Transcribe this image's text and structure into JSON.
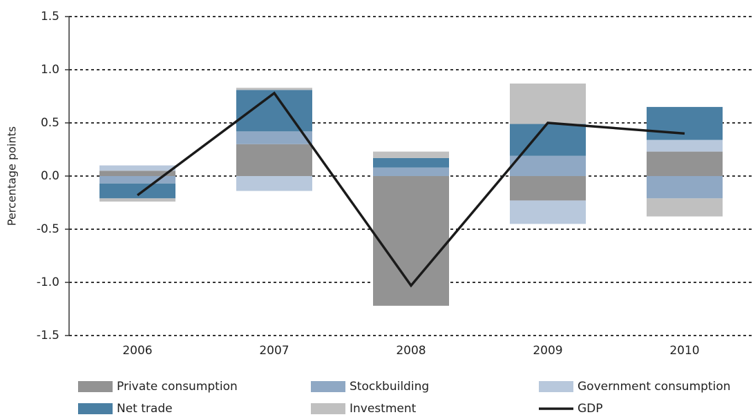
{
  "chart_data": {
    "type": "bar",
    "stacked": true,
    "y_label": "Percentage points",
    "categories": [
      "2006",
      "2007",
      "2008",
      "2009",
      "2010"
    ],
    "series": [
      {
        "name": "Private consumption",
        "color": "#939393",
        "values": [
          0.05,
          0.3,
          -1.22,
          -0.23,
          0.23
        ]
      },
      {
        "name": "Stockbuilding",
        "color": "#8fa8c4",
        "values": [
          -0.07,
          0.12,
          0.08,
          0.19,
          -0.21
        ]
      },
      {
        "name": "Government consumption",
        "color": "#b8c8dc",
        "values": [
          0.05,
          -0.14,
          0,
          -0.22,
          0.11
        ]
      },
      {
        "name": "Net trade",
        "color": "#4a7fa3",
        "values": [
          -0.14,
          0.39,
          0.09,
          0.3,
          0.31
        ]
      },
      {
        "name": "Investment",
        "color": "#c0c0c0",
        "values": [
          -0.03,
          0.02,
          0.06,
          0.38,
          -0.17
        ]
      },
      {
        "name": "GDP",
        "type": "line",
        "color": "#1a1a1a",
        "values": [
          -0.18,
          0.78,
          -1.03,
          0.5,
          0.4
        ]
      }
    ],
    "ylim": [
      -1.5,
      1.5
    ],
    "yticks": [
      -1.5,
      {
        "value": -1,
        "label": "-1.0"
      },
      -0.5,
      {
        "value": 0,
        "label": "0.0"
      },
      0.5,
      {
        "value": 1,
        "label": "1.0"
      },
      1.5
    ],
    "grid": true
  }
}
